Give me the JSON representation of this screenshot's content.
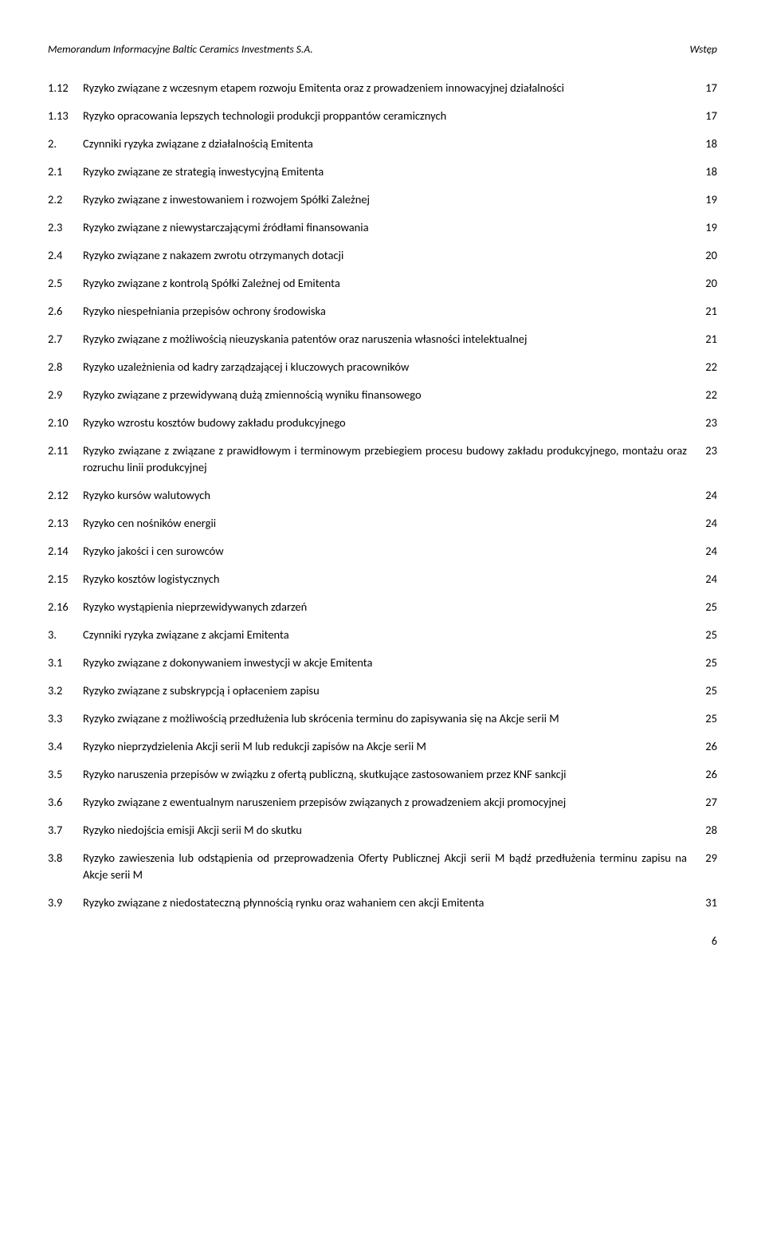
{
  "header": {
    "left": "Memorandum Informacyjne Baltic Ceramics Investments S.A.",
    "right": "Wstęp"
  },
  "rows": [
    {
      "num": "1.12",
      "text": "Ryzyko związane z wczesnym etapem rozwoju Emitenta oraz z prowadzeniem innowacyjnej działalności",
      "page": "17"
    },
    {
      "num": "1.13",
      "text": "Ryzyko opracowania lepszych technologii produkcji proppantów ceramicznych",
      "page": "17"
    },
    {
      "num": "2.",
      "text": "Czynniki ryzyka związane z działalnością Emitenta",
      "page": "18"
    },
    {
      "num": "2.1",
      "text": "Ryzyko związane ze strategią inwestycyjną Emitenta",
      "page": "18"
    },
    {
      "num": "2.2",
      "text": "Ryzyko związane z inwestowaniem i rozwojem Spółki Zależnej",
      "page": "19"
    },
    {
      "num": "2.3",
      "text": "Ryzyko związane z niewystarczającymi źródłami finansowania",
      "page": "19"
    },
    {
      "num": "2.4",
      "text": "Ryzyko związane z nakazem zwrotu otrzymanych dotacji",
      "page": "20"
    },
    {
      "num": "2.5",
      "text": "Ryzyko związane z kontrolą Spółki Zależnej od Emitenta",
      "page": "20"
    },
    {
      "num": "2.6",
      "text": "Ryzyko niespełniania przepisów ochrony środowiska",
      "page": "21"
    },
    {
      "num": "2.7",
      "text": "Ryzyko związane z możliwością nieuzyskania patentów oraz naruszenia własności intelektualnej",
      "page": "21"
    },
    {
      "num": "2.8",
      "text": "Ryzyko uzależnienia od kadry zarządzającej i kluczowych pracowników",
      "page": "22"
    },
    {
      "num": "2.9",
      "text": "Ryzyko związane z przewidywaną dużą zmiennością wyniku finansowego",
      "page": "22"
    },
    {
      "num": "2.10",
      "text": "Ryzyko wzrostu kosztów budowy zakładu produkcyjnego",
      "page": "23"
    },
    {
      "num": "2.11",
      "text": "Ryzyko związane z związane z prawidłowym i terminowym przebiegiem procesu budowy zakładu produkcyjnego, montażu oraz rozruchu linii produkcyjnej",
      "page": "23"
    },
    {
      "num": "2.12",
      "text": "Ryzyko kursów walutowych",
      "page": "24"
    },
    {
      "num": "2.13",
      "text": "Ryzyko cen nośników energii",
      "page": "24"
    },
    {
      "num": "2.14",
      "text": "Ryzyko jakości i cen surowców",
      "page": "24"
    },
    {
      "num": "2.15",
      "text": "Ryzyko kosztów logistycznych",
      "page": "24"
    },
    {
      "num": "2.16",
      "text": "Ryzyko wystąpienia nieprzewidywanych zdarzeń",
      "page": "25"
    },
    {
      "num": "3.",
      "text": "Czynniki ryzyka związane z akcjami Emitenta",
      "page": "25"
    },
    {
      "num": "3.1",
      "text": "Ryzyko związane z dokonywaniem inwestycji w akcje Emitenta",
      "page": "25"
    },
    {
      "num": "3.2",
      "text": "Ryzyko związane z subskrypcją i opłaceniem zapisu",
      "page": "25"
    },
    {
      "num": "3.3",
      "text": "Ryzyko związane z możliwością przedłużenia lub skrócenia terminu do zapisywania się na Akcje serii M",
      "page": "25"
    },
    {
      "num": "3.4",
      "text": "Ryzyko nieprzydzielenia Akcji serii M lub redukcji zapisów na Akcje serii M",
      "page": "26"
    },
    {
      "num": "3.5",
      "text": "Ryzyko naruszenia przepisów w związku z ofertą publiczną, skutkujące zastosowaniem przez KNF sankcji",
      "page": "26"
    },
    {
      "num": "3.6",
      "text": "Ryzyko związane z ewentualnym naruszeniem przepisów związanych z prowadzeniem akcji promocyjnej",
      "page": "27"
    },
    {
      "num": "3.7",
      "text": "Ryzyko niedojścia emisji Akcji serii M do skutku",
      "page": "28"
    },
    {
      "num": "3.8",
      "text": "Ryzyko zawieszenia lub odstąpienia od przeprowadzenia Oferty Publicznej Akcji serii M bądź przedłużenia terminu zapisu na Akcje serii M",
      "page": "29"
    },
    {
      "num": "3.9",
      "text": "Ryzyko związane z niedostateczną płynnością rynku oraz wahaniem cen akcji Emitenta",
      "page": "31"
    }
  ],
  "footer": {
    "page": "6"
  }
}
